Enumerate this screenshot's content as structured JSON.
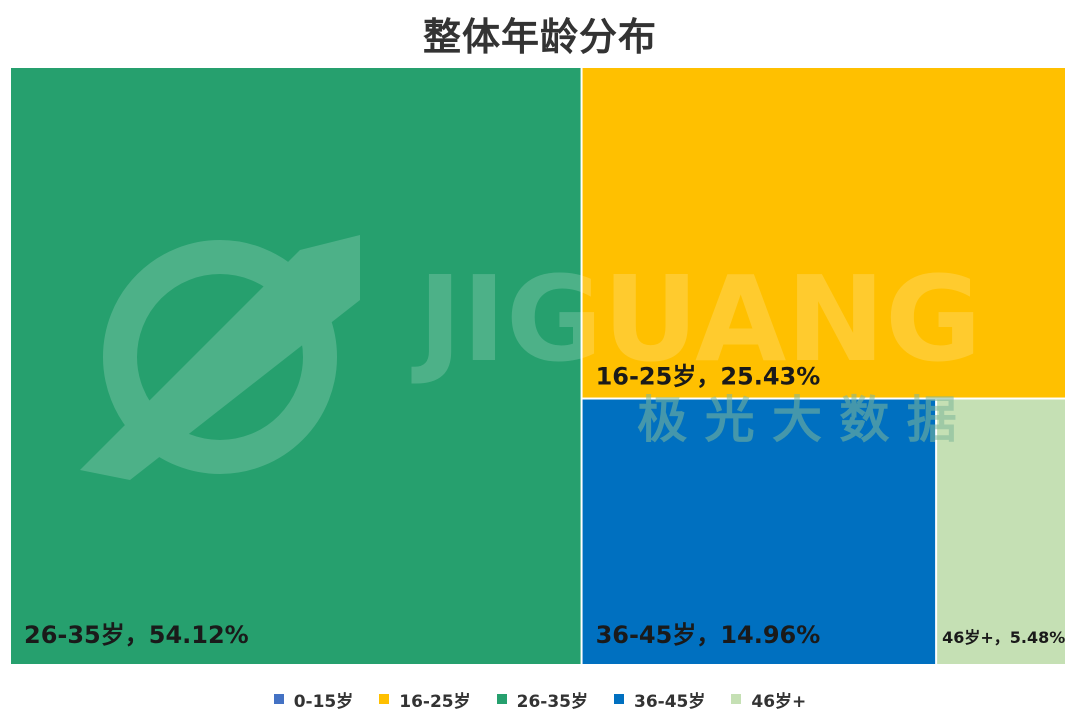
{
  "watermark": {
    "brand": "JIGUANG",
    "subtitle": "极 光 大 数 据"
  },
  "chart_data": {
    "type": "treemap",
    "title": "整体年龄分布",
    "legend_position": "bottom",
    "series": [
      {
        "name": "0-15岁",
        "value": 0,
        "label": "",
        "color": "#4472C4"
      },
      {
        "name": "16-25岁",
        "value": 25.43,
        "label": "16-25岁，25.43%",
        "color": "#FFC000"
      },
      {
        "name": "26-35岁",
        "value": 54.12,
        "label": "26-35岁，54.12%",
        "color": "#26A06E"
      },
      {
        "name": "36-45岁",
        "value": 14.96,
        "label": "36-45岁，14.96%",
        "color": "#0070C0"
      },
      {
        "name": "46岁+",
        "value": 5.48,
        "label": "46岁+，5.48%",
        "color": "#C5E0B4"
      }
    ]
  }
}
